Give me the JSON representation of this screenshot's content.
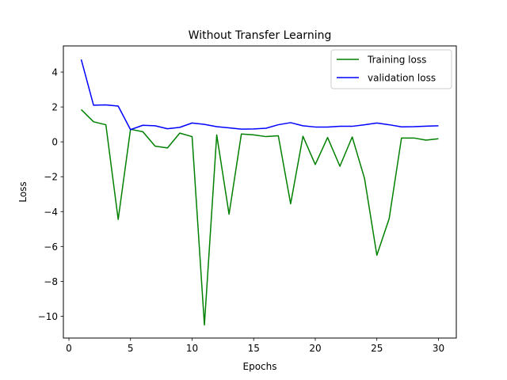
{
  "chart_data": {
    "type": "line",
    "title": "Without Transfer Learning",
    "xlabel": "Epochs",
    "ylabel": "Loss",
    "xlim": [
      -0.45,
      31.45
    ],
    "ylim": [
      -11.25,
      5.5
    ],
    "xticks": [
      0,
      5,
      10,
      15,
      20,
      25,
      30
    ],
    "yticks": [
      -10,
      -8,
      -6,
      -4,
      -2,
      0,
      2,
      4
    ],
    "grid": false,
    "legend_position": "top-right",
    "x": [
      1,
      2,
      3,
      4,
      5,
      6,
      7,
      8,
      9,
      10,
      11,
      12,
      13,
      14,
      15,
      16,
      17,
      18,
      19,
      20,
      21,
      22,
      23,
      24,
      25,
      26,
      27,
      28,
      29,
      30
    ],
    "series": [
      {
        "name": "Training loss",
        "color": "#008000",
        "values": [
          1.85,
          1.15,
          0.98,
          -4.45,
          0.72,
          0.58,
          -0.25,
          -0.35,
          0.5,
          0.3,
          -10.5,
          0.4,
          -4.15,
          0.45,
          0.4,
          0.3,
          0.35,
          -3.55,
          0.32,
          -1.3,
          0.25,
          -1.4,
          0.28,
          -2.1,
          -6.5,
          -4.4,
          0.22,
          0.22,
          0.1,
          0.18
        ]
      },
      {
        "name": "validation loss",
        "color": "#0000ff",
        "values": [
          4.72,
          2.1,
          2.12,
          2.05,
          0.7,
          0.95,
          0.92,
          0.75,
          0.83,
          1.08,
          1.0,
          0.87,
          0.8,
          0.73,
          0.74,
          0.78,
          0.98,
          1.1,
          0.92,
          0.85,
          0.85,
          0.89,
          0.89,
          0.98,
          1.08,
          0.98,
          0.86,
          0.87,
          0.9,
          0.92
        ]
      }
    ]
  }
}
